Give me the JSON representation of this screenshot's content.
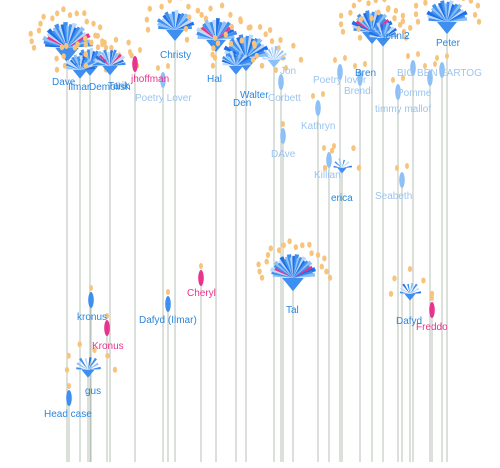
{
  "colors": {
    "stem": "#b7c3b6",
    "petal_dark": "#1f6fe6",
    "petal_mid": "#3f8ff0",
    "petal_light": "#8cc0f7",
    "petal_pale": "#bcd8f9",
    "pink": "#e8348c",
    "pink_light": "#f09cc4",
    "bud": "#f7c47e",
    "label_blue": "#2a86e0",
    "label_light": "#9cc4ee",
    "label_pink": "#e8348c"
  },
  "chart_data": {
    "type": "scatter",
    "title": "",
    "xlabel": "",
    "ylabel": "",
    "grid": false,
    "legend": "none",
    "flowers": [
      {
        "name": "Dave",
        "tone": "blue",
        "kind": "flower",
        "size": "large",
        "petals": 24,
        "buds": 18
      },
      {
        "name": "Tarik",
        "tone": "blue",
        "kind": "flower",
        "size": "medium",
        "petals": 16,
        "buds": 10
      },
      {
        "name": "Ilmar",
        "tone": "blue",
        "kind": "flower",
        "size": "medium",
        "petals": 14,
        "buds": 8
      },
      {
        "name": "Demolish",
        "tone": "blue",
        "kind": "flower",
        "size": "medium",
        "petals": 14,
        "buds": 8
      },
      {
        "name": "Poetry Lover",
        "tone": "light",
        "kind": "bud",
        "size": "small",
        "petals": 0,
        "buds": 2
      },
      {
        "name": "jhoffman",
        "tone": "pink",
        "kind": "bud",
        "size": "small",
        "petals": 0,
        "buds": 2
      },
      {
        "name": "Christy",
        "tone": "blue",
        "kind": "flower",
        "size": "medium",
        "petals": 16,
        "buds": 10
      },
      {
        "name": "Hal",
        "tone": "blue",
        "kind": "flower",
        "size": "medium",
        "petals": 16,
        "buds": 10
      },
      {
        "name": "Walter",
        "tone": "blue",
        "kind": "flower",
        "size": "large",
        "petals": 20,
        "buds": 12
      },
      {
        "name": "Den",
        "tone": "blue",
        "kind": "flower",
        "size": "medium",
        "petals": 14,
        "buds": 8
      },
      {
        "name": "Jon",
        "tone": "light",
        "kind": "flower",
        "size": "small",
        "petals": 10,
        "buds": 6
      },
      {
        "name": "Corbett",
        "tone": "light",
        "kind": "bud",
        "size": "small",
        "petals": 0,
        "buds": 2
      },
      {
        "name": "Kathryn",
        "tone": "light",
        "kind": "bud",
        "size": "small",
        "petals": 0,
        "buds": 2
      },
      {
        "name": "DAve",
        "tone": "light",
        "kind": "bud",
        "size": "small",
        "petals": 0,
        "buds": 1
      },
      {
        "name": "Killian",
        "tone": "light",
        "kind": "bud",
        "size": "small",
        "petals": 0,
        "buds": 2
      },
      {
        "name": "erica",
        "tone": "blue",
        "kind": "flower",
        "size": "small",
        "petals": 6,
        "buds": 4
      },
      {
        "name": "Poetry lover",
        "tone": "light",
        "kind": "bud",
        "size": "small",
        "petals": 0,
        "buds": 2
      },
      {
        "name": "Brendi",
        "tone": "light",
        "kind": "bud",
        "size": "small",
        "petals": 0,
        "buds": 2
      },
      {
        "name": "Bren",
        "tone": "blue",
        "kind": "flower",
        "size": "large",
        "petals": 20,
        "buds": 14
      },
      {
        "name": "jenni2",
        "tone": "blue",
        "kind": "flower",
        "size": "medium",
        "petals": 14,
        "buds": 10
      },
      {
        "name": "BIG BEN",
        "tone": "light",
        "kind": "bud",
        "size": "small",
        "petals": 0,
        "buds": 2
      },
      {
        "name": "timmy mallof",
        "tone": "light",
        "kind": "bud",
        "size": "small",
        "petals": 0,
        "buds": 2
      },
      {
        "name": "Pomme",
        "tone": "light",
        "kind": "bud",
        "size": "small",
        "petals": 0,
        "buds": 2
      },
      {
        "name": "Peter",
        "tone": "blue",
        "kind": "flower",
        "size": "large",
        "petals": 20,
        "buds": 14
      },
      {
        "name": "EARTOG",
        "tone": "light",
        "kind": "bud",
        "size": "small",
        "petals": 0,
        "buds": 2
      },
      {
        "name": "Seabeth",
        "tone": "light",
        "kind": "bud",
        "size": "small",
        "petals": 0,
        "buds": 2
      },
      {
        "name": "Cheryl",
        "tone": "pink",
        "kind": "bud",
        "size": "small",
        "petals": 0,
        "buds": 1
      },
      {
        "name": "Tal",
        "tone": "blue",
        "kind": "flower",
        "size": "large",
        "petals": 26,
        "buds": 18
      },
      {
        "name": "kronus",
        "tone": "blue",
        "kind": "bud",
        "size": "small",
        "petals": 0,
        "buds": 1
      },
      {
        "name": "Kronus",
        "tone": "pink",
        "kind": "bud",
        "size": "small",
        "petals": 0,
        "buds": 1
      },
      {
        "name": "Dafyd (Ilmar)",
        "tone": "blue",
        "kind": "bud",
        "size": "small",
        "petals": 0,
        "buds": 1
      },
      {
        "name": "gus",
        "tone": "blue",
        "kind": "flower",
        "size": "small",
        "petals": 8,
        "buds": 6
      },
      {
        "name": "Head case",
        "tone": "blue",
        "kind": "bud",
        "size": "small",
        "petals": 0,
        "buds": 1
      },
      {
        "name": "Dafyd",
        "tone": "blue",
        "kind": "flower",
        "size": "small",
        "petals": 8,
        "buds": 5
      },
      {
        "name": "Freddo",
        "tone": "pink",
        "kind": "bud",
        "size": "small",
        "petals": 0,
        "buds": 1
      }
    ]
  }
}
